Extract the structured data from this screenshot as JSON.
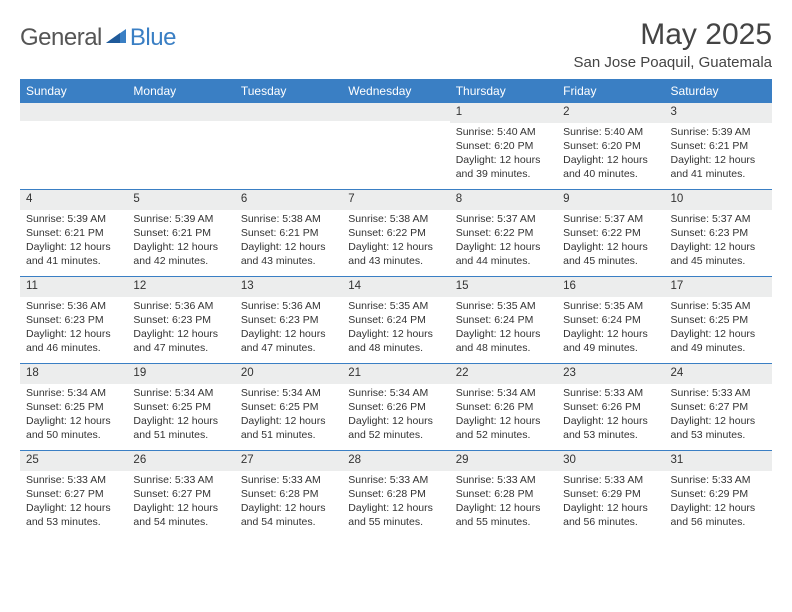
{
  "logo": {
    "general": "General",
    "blue": "Blue"
  },
  "title": "May 2025",
  "location": "San Jose Poaquil, Guatemala",
  "colors": {
    "header_bg": "#3a7fc4",
    "header_text": "#ffffff",
    "daynum_bg": "#eceded",
    "rule": "#3a7fc4",
    "body_text": "#333333",
    "page_bg": "#ffffff"
  },
  "weekdays": [
    "Sunday",
    "Monday",
    "Tuesday",
    "Wednesday",
    "Thursday",
    "Friday",
    "Saturday"
  ],
  "weeks": [
    [
      {
        "empty": true
      },
      {
        "empty": true
      },
      {
        "empty": true
      },
      {
        "empty": true
      },
      {
        "day": "1",
        "sunrise": "5:40 AM",
        "sunset": "6:20 PM",
        "daylight": "12 hours and 39 minutes."
      },
      {
        "day": "2",
        "sunrise": "5:40 AM",
        "sunset": "6:20 PM",
        "daylight": "12 hours and 40 minutes."
      },
      {
        "day": "3",
        "sunrise": "5:39 AM",
        "sunset": "6:21 PM",
        "daylight": "12 hours and 41 minutes."
      }
    ],
    [
      {
        "day": "4",
        "sunrise": "5:39 AM",
        "sunset": "6:21 PM",
        "daylight": "12 hours and 41 minutes."
      },
      {
        "day": "5",
        "sunrise": "5:39 AM",
        "sunset": "6:21 PM",
        "daylight": "12 hours and 42 minutes."
      },
      {
        "day": "6",
        "sunrise": "5:38 AM",
        "sunset": "6:21 PM",
        "daylight": "12 hours and 43 minutes."
      },
      {
        "day": "7",
        "sunrise": "5:38 AM",
        "sunset": "6:22 PM",
        "daylight": "12 hours and 43 minutes."
      },
      {
        "day": "8",
        "sunrise": "5:37 AM",
        "sunset": "6:22 PM",
        "daylight": "12 hours and 44 minutes."
      },
      {
        "day": "9",
        "sunrise": "5:37 AM",
        "sunset": "6:22 PM",
        "daylight": "12 hours and 45 minutes."
      },
      {
        "day": "10",
        "sunrise": "5:37 AM",
        "sunset": "6:23 PM",
        "daylight": "12 hours and 45 minutes."
      }
    ],
    [
      {
        "day": "11",
        "sunrise": "5:36 AM",
        "sunset": "6:23 PM",
        "daylight": "12 hours and 46 minutes."
      },
      {
        "day": "12",
        "sunrise": "5:36 AM",
        "sunset": "6:23 PM",
        "daylight": "12 hours and 47 minutes."
      },
      {
        "day": "13",
        "sunrise": "5:36 AM",
        "sunset": "6:23 PM",
        "daylight": "12 hours and 47 minutes."
      },
      {
        "day": "14",
        "sunrise": "5:35 AM",
        "sunset": "6:24 PM",
        "daylight": "12 hours and 48 minutes."
      },
      {
        "day": "15",
        "sunrise": "5:35 AM",
        "sunset": "6:24 PM",
        "daylight": "12 hours and 48 minutes."
      },
      {
        "day": "16",
        "sunrise": "5:35 AM",
        "sunset": "6:24 PM",
        "daylight": "12 hours and 49 minutes."
      },
      {
        "day": "17",
        "sunrise": "5:35 AM",
        "sunset": "6:25 PM",
        "daylight": "12 hours and 49 minutes."
      }
    ],
    [
      {
        "day": "18",
        "sunrise": "5:34 AM",
        "sunset": "6:25 PM",
        "daylight": "12 hours and 50 minutes."
      },
      {
        "day": "19",
        "sunrise": "5:34 AM",
        "sunset": "6:25 PM",
        "daylight": "12 hours and 51 minutes."
      },
      {
        "day": "20",
        "sunrise": "5:34 AM",
        "sunset": "6:25 PM",
        "daylight": "12 hours and 51 minutes."
      },
      {
        "day": "21",
        "sunrise": "5:34 AM",
        "sunset": "6:26 PM",
        "daylight": "12 hours and 52 minutes."
      },
      {
        "day": "22",
        "sunrise": "5:34 AM",
        "sunset": "6:26 PM",
        "daylight": "12 hours and 52 minutes."
      },
      {
        "day": "23",
        "sunrise": "5:33 AM",
        "sunset": "6:26 PM",
        "daylight": "12 hours and 53 minutes."
      },
      {
        "day": "24",
        "sunrise": "5:33 AM",
        "sunset": "6:27 PM",
        "daylight": "12 hours and 53 minutes."
      }
    ],
    [
      {
        "day": "25",
        "sunrise": "5:33 AM",
        "sunset": "6:27 PM",
        "daylight": "12 hours and 53 minutes."
      },
      {
        "day": "26",
        "sunrise": "5:33 AM",
        "sunset": "6:27 PM",
        "daylight": "12 hours and 54 minutes."
      },
      {
        "day": "27",
        "sunrise": "5:33 AM",
        "sunset": "6:28 PM",
        "daylight": "12 hours and 54 minutes."
      },
      {
        "day": "28",
        "sunrise": "5:33 AM",
        "sunset": "6:28 PM",
        "daylight": "12 hours and 55 minutes."
      },
      {
        "day": "29",
        "sunrise": "5:33 AM",
        "sunset": "6:28 PM",
        "daylight": "12 hours and 55 minutes."
      },
      {
        "day": "30",
        "sunrise": "5:33 AM",
        "sunset": "6:29 PM",
        "daylight": "12 hours and 56 minutes."
      },
      {
        "day": "31",
        "sunrise": "5:33 AM",
        "sunset": "6:29 PM",
        "daylight": "12 hours and 56 minutes."
      }
    ]
  ],
  "labels": {
    "sunrise": "Sunrise:",
    "sunset": "Sunset:",
    "daylight": "Daylight:"
  }
}
